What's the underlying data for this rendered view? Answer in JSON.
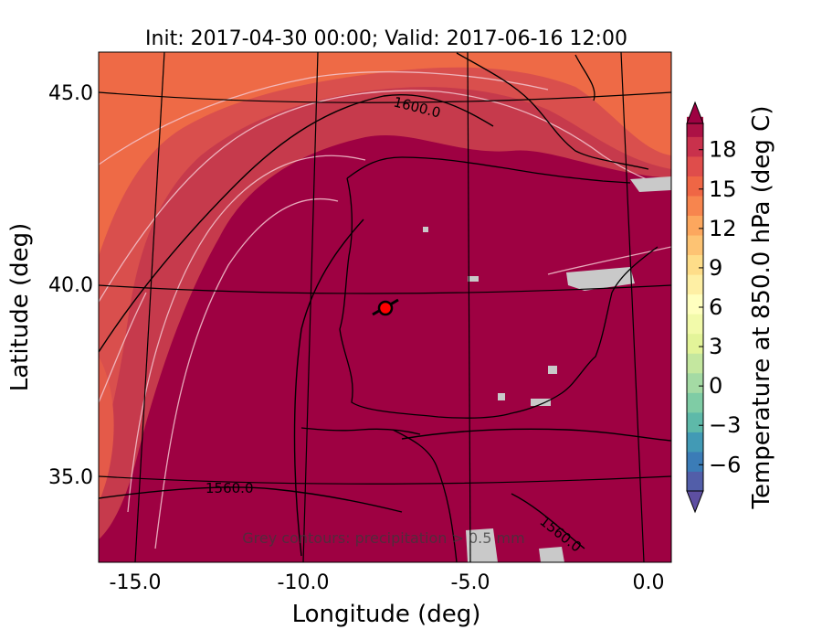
{
  "chart_data": {
    "type": "heatmap",
    "title": "Init: 2017-04-30 00:00; Valid: 2017-06-16 12:00",
    "xlabel": "Longitude (deg)",
    "ylabel": "Latitude (deg)",
    "xlim": [
      -15.9,
      0.25
    ],
    "ylim": [
      32.5,
      45.9
    ],
    "x_ticks": [
      {
        "value": -15,
        "label": "-15.0"
      },
      {
        "value": -10,
        "label": "-10.0"
      },
      {
        "value": -5,
        "label": "-5.0"
      },
      {
        "value": 0,
        "label": "0.0"
      }
    ],
    "y_ticks": [
      {
        "value": 35,
        "label": "35.0"
      },
      {
        "value": 40,
        "label": "40.0"
      },
      {
        "value": 45,
        "label": "45.0"
      }
    ],
    "colorbar": {
      "label": "Temperature at 850.0 hPa (deg C)",
      "min": -8,
      "max": 20,
      "step": 1.5,
      "extend": "both",
      "tick_values": [
        -6,
        -3,
        0,
        3,
        6,
        9,
        12,
        15,
        18
      ],
      "tick_labels": [
        "−6",
        "−3",
        "0",
        "3",
        "6",
        "9",
        "12",
        "15",
        "18"
      ],
      "colormap": [
        "#5e4fa2",
        "#3288bd",
        "#66c2a5",
        "#abdda4",
        "#e6f598",
        "#ffffbf",
        "#fee08b",
        "#fdae61",
        "#f46d43",
        "#d53e4f",
        "#9e0142"
      ]
    },
    "geopotential_contour_labels": [
      {
        "text": "1600.0",
        "lon": -7.5,
        "lat": 45.0
      },
      {
        "text": "1560.0",
        "lon": -11.8,
        "lat": 34.6
      },
      {
        "text": "1560.0",
        "lon": -4.5,
        "lat": 33.1
      }
    ],
    "marker": {
      "lon": -7.6,
      "lat": 39.4
    },
    "annotation": "Grey contours: precipitation > 0.5 mm"
  }
}
